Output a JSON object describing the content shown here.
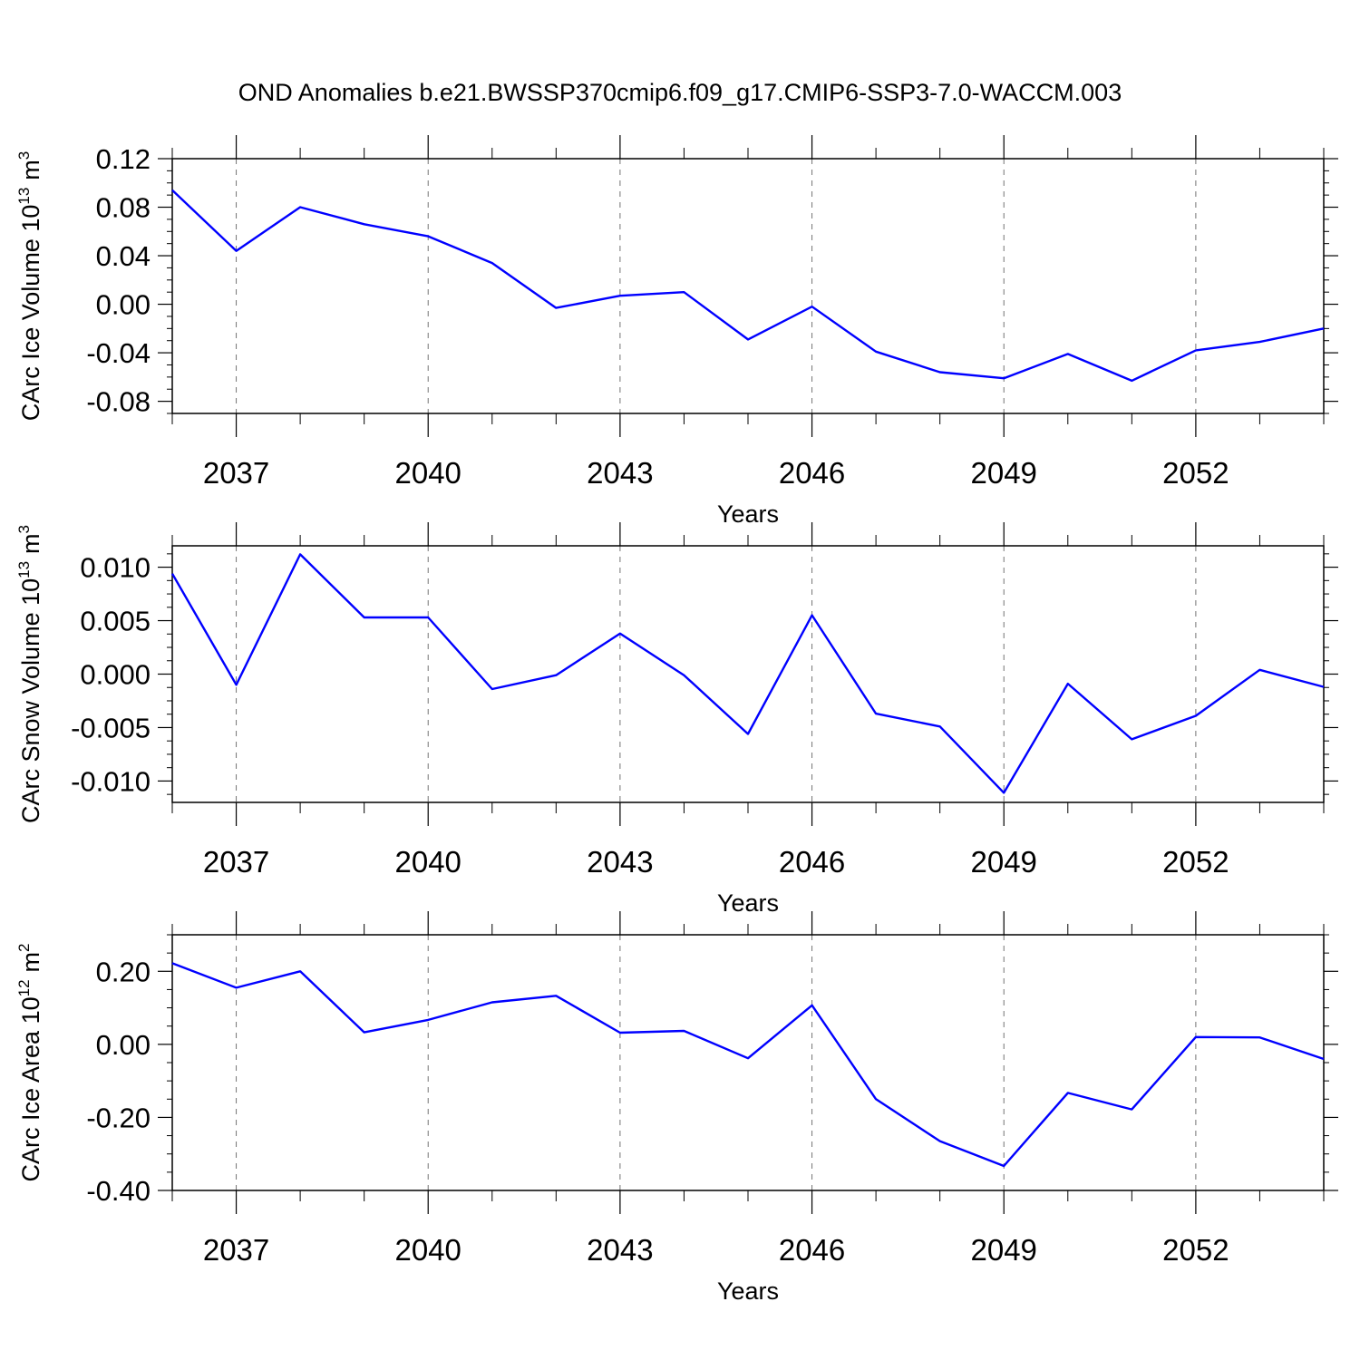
{
  "title": "OND Anomalies b.e21.BWSSP370cmip6.f09_g17.CMIP6-SSP3-7.0-WACCM.003",
  "line_color": "#0000ff",
  "chart_data": [
    {
      "type": "line",
      "ylabel_main": "CArc Ice Volume 10",
      "ylabel_exp": "13",
      "ylabel_unit": "m",
      "ylabel_unit_exp": "3",
      "xlabel": "Years",
      "xlim": [
        2036,
        2054
      ],
      "ylim": [
        -0.09,
        0.12
      ],
      "yticks": [
        0.12,
        0.08,
        0.04,
        0.0,
        -0.04,
        -0.08
      ],
      "yticklabels": [
        "0.12",
        "0.08",
        "0.04",
        "0.00",
        "-0.04",
        "-0.08"
      ],
      "xticks": [
        2037,
        2040,
        2043,
        2046,
        2049,
        2052
      ],
      "xticklabels": [
        "2037",
        "2040",
        "2043",
        "2046",
        "2049",
        "2052"
      ],
      "series": [
        {
          "name": "CArc Ice Volume",
          "x": [
            2036,
            2037,
            2038,
            2039,
            2040,
            2041,
            2042,
            2043,
            2044,
            2045,
            2046,
            2047,
            2048,
            2049,
            2050,
            2051,
            2052,
            2053,
            2054
          ],
          "values": [
            0.094,
            0.044,
            0.08,
            0.066,
            0.056,
            0.034,
            -0.003,
            0.007,
            0.01,
            -0.029,
            -0.002,
            -0.039,
            -0.056,
            -0.061,
            -0.041,
            -0.063,
            -0.038,
            -0.031,
            -0.02
          ]
        }
      ]
    },
    {
      "type": "line",
      "ylabel_main": "CArc Snow Volume 10",
      "ylabel_exp": "13",
      "ylabel_unit": "m",
      "ylabel_unit_exp": "3",
      "xlabel": "Years",
      "xlim": [
        2036,
        2054
      ],
      "ylim": [
        -0.012,
        0.012
      ],
      "yticks": [
        0.01,
        0.005,
        0.0,
        -0.005,
        -0.01
      ],
      "yticklabels": [
        "0.010",
        "0.005",
        "0.000",
        "-0.005",
        "-0.010"
      ],
      "xticks": [
        2037,
        2040,
        2043,
        2046,
        2049,
        2052
      ],
      "xticklabels": [
        "2037",
        "2040",
        "2043",
        "2046",
        "2049",
        "2052"
      ],
      "series": [
        {
          "name": "CArc Snow Volume",
          "x": [
            2036,
            2037,
            2038,
            2039,
            2040,
            2041,
            2042,
            2043,
            2044,
            2045,
            2046,
            2047,
            2048,
            2049,
            2050,
            2051,
            2052,
            2053,
            2054
          ],
          "values": [
            0.0094,
            -0.001,
            0.0112,
            0.0053,
            0.0053,
            -0.0014,
            -0.0001,
            0.0038,
            -0.0001,
            -0.0056,
            0.0055,
            -0.0037,
            -0.0049,
            -0.0111,
            -0.0009,
            -0.0061,
            -0.0039,
            0.0004,
            -0.0012
          ]
        }
      ]
    },
    {
      "type": "line",
      "ylabel_main": "CArc Ice Area 10",
      "ylabel_exp": "12",
      "ylabel_unit": "m",
      "ylabel_unit_exp": "2",
      "xlabel": "Years",
      "xlim": [
        2036,
        2054
      ],
      "ylim": [
        -0.4,
        0.3
      ],
      "yticks": [
        0.2,
        0.0,
        -0.2,
        -0.4
      ],
      "yticklabels": [
        "0.20",
        "0.00",
        "-0.20",
        "-0.40"
      ],
      "xticks": [
        2037,
        2040,
        2043,
        2046,
        2049,
        2052
      ],
      "xticklabels": [
        "2037",
        "2040",
        "2043",
        "2046",
        "2049",
        "2052"
      ],
      "series": [
        {
          "name": "CArc Ice Area",
          "x": [
            2036,
            2037,
            2038,
            2039,
            2040,
            2041,
            2042,
            2043,
            2044,
            2045,
            2046,
            2047,
            2048,
            2049,
            2050,
            2051,
            2052,
            2053,
            2054
          ],
          "values": [
            0.222,
            0.155,
            0.2,
            0.033,
            0.067,
            0.115,
            0.133,
            0.032,
            0.037,
            -0.038,
            0.107,
            -0.15,
            -0.265,
            -0.333,
            -0.133,
            -0.178,
            0.02,
            0.019,
            -0.04
          ]
        }
      ]
    }
  ]
}
